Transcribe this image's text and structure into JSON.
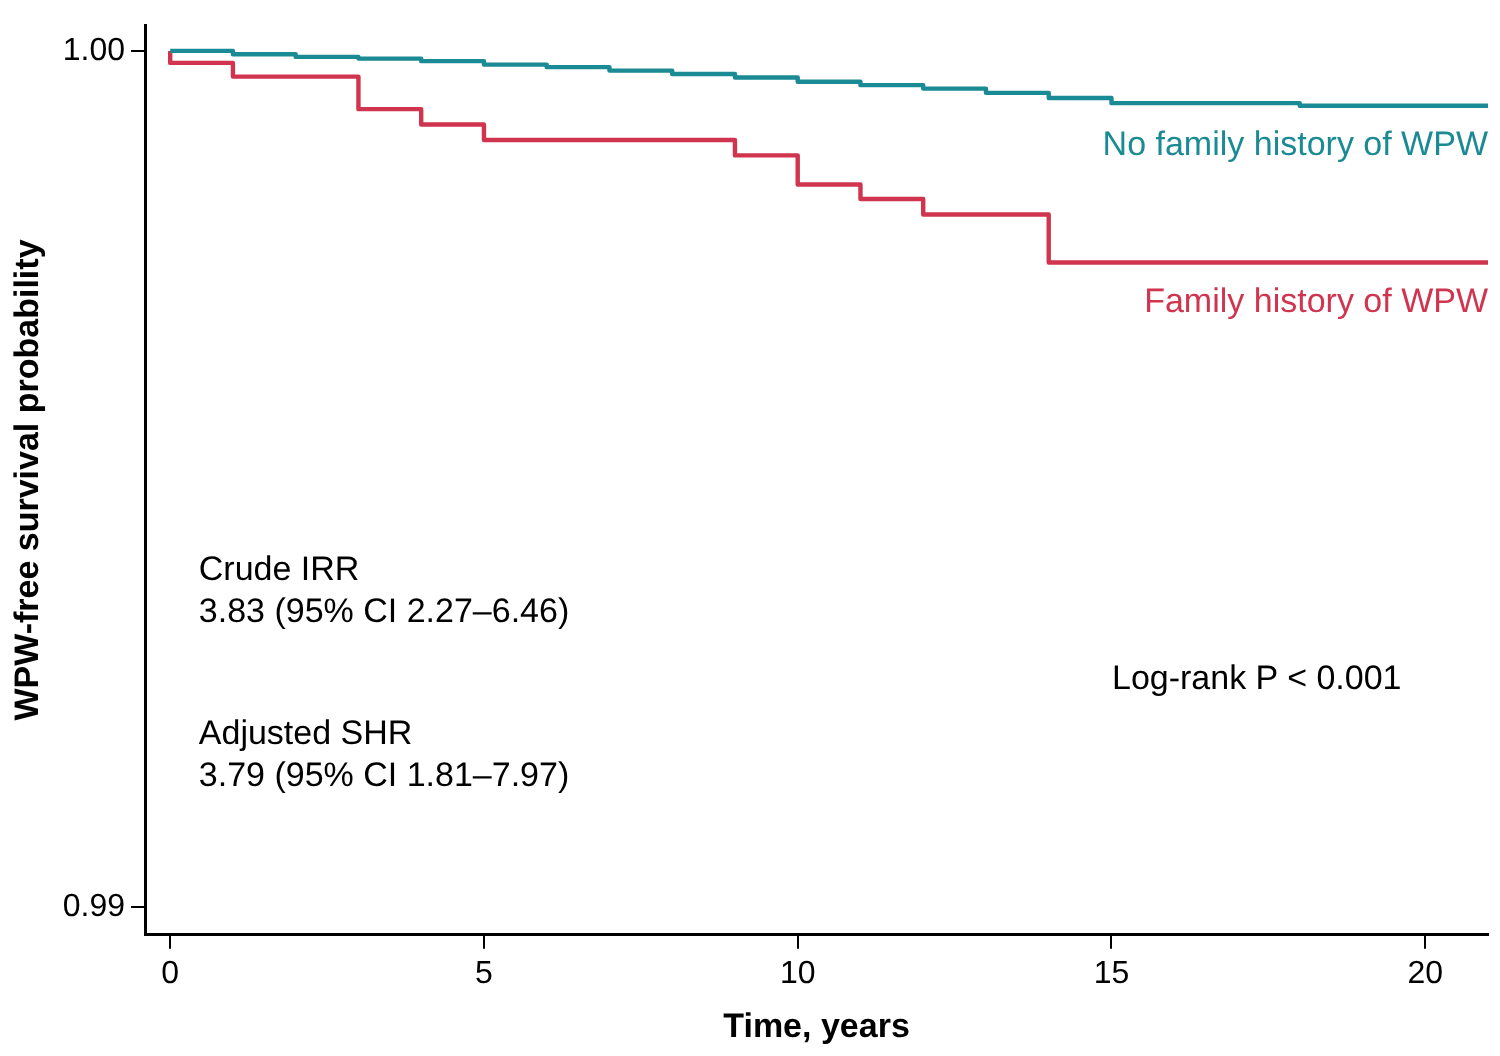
{
  "chart_data": {
    "type": "step",
    "xlabel": "Time, years",
    "ylabel": "WPW-free survival probability",
    "xlim": [
      -0.4,
      21
    ],
    "xticks": [
      0,
      5,
      10,
      15,
      20
    ],
    "ylim": [
      0.98968,
      1.0003
    ],
    "yticks": [
      0.99,
      {
        "value": 1,
        "label": "1.00"
      }
    ],
    "grid": false,
    "legend": false,
    "marker": "none",
    "line_style": "solid",
    "series": [
      {
        "name": "No family history of WPW",
        "color": "#1a8a94",
        "x": [
          0,
          1,
          2,
          3,
          4,
          5,
          6,
          7,
          8,
          9,
          10,
          11,
          12,
          13,
          14,
          15,
          18,
          21
        ],
        "values": [
          1.0,
          0.99996,
          0.99993,
          0.99991,
          0.99988,
          0.99984,
          0.99981,
          0.99977,
          0.99973,
          0.99969,
          0.99964,
          0.9996,
          0.99956,
          0.99951,
          0.99945,
          0.99939,
          0.99936,
          0.99936
        ]
      },
      {
        "name": "Family history of WPW",
        "color": "#d0344f",
        "x": [
          0,
          0,
          1,
          3,
          4,
          5,
          9,
          10,
          11,
          12,
          14,
          21
        ],
        "values": [
          1.0,
          0.99986,
          0.9997,
          0.99932,
          0.99914,
          0.99896,
          0.99878,
          0.99844,
          0.99827,
          0.99809,
          0.99753,
          0.99753
        ]
      }
    ],
    "annotations": [
      "Crude IRR\n3.83 (95% CI 2.27–6.46)",
      "Adjusted SHR\n3.79 (95% CI 1.81–7.97)",
      "Log-rank P < 0.001"
    ]
  }
}
